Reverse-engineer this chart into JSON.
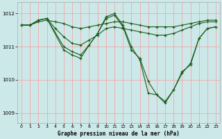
{
  "background_color": "#cce8e8",
  "grid_color": "#ff9999",
  "line_color": "#1a5c1a",
  "title": "Graphe pression niveau de la mer (hPa)",
  "xlim": [
    -0.5,
    23.5
  ],
  "ylim": [
    1008.7,
    1012.35
  ],
  "yticks": [
    1009,
    1010,
    1011,
    1012
  ],
  "xticks": [
    0,
    1,
    2,
    3,
    4,
    5,
    6,
    7,
    8,
    9,
    10,
    11,
    12,
    13,
    14,
    15,
    16,
    17,
    18,
    19,
    20,
    21,
    22,
    23
  ],
  "series": [
    {
      "x": [
        0,
        1,
        2,
        3,
        4,
        5,
        6,
        7,
        8,
        9,
        10,
        11,
        12,
        13,
        14,
        15,
        16,
        17,
        18,
        19,
        20,
        21,
        22,
        23
      ],
      "y": [
        1011.65,
        1011.65,
        1011.75,
        1011.8,
        1011.75,
        1011.7,
        1011.6,
        1011.55,
        1011.6,
        1011.65,
        1011.7,
        1011.75,
        1011.75,
        1011.7,
        1011.65,
        1011.6,
        1011.6,
        1011.6,
        1011.6,
        1011.65,
        1011.7,
        1011.75,
        1011.8,
        1011.8
      ]
    },
    {
      "x": [
        0,
        1,
        2,
        3,
        4,
        5,
        6,
        7,
        8,
        9,
        10,
        11,
        12,
        13,
        14,
        15,
        16,
        17,
        18,
        19,
        20,
        21,
        22,
        23
      ],
      "y": [
        1011.65,
        1011.65,
        1011.8,
        1011.85,
        1011.55,
        1011.3,
        1011.1,
        1011.05,
        1011.2,
        1011.35,
        1011.55,
        1011.6,
        1011.55,
        1011.5,
        1011.45,
        1011.4,
        1011.35,
        1011.35,
        1011.4,
        1011.5,
        1011.6,
        1011.7,
        1011.75,
        1011.75
      ]
    },
    {
      "x": [
        0,
        1,
        2,
        3,
        5,
        6,
        7,
        8,
        9,
        10,
        11,
        12,
        13,
        14,
        15,
        16,
        17,
        18,
        19,
        20,
        21,
        22,
        23
      ],
      "y": [
        1011.65,
        1011.65,
        1011.8,
        1011.85,
        1011.0,
        1010.85,
        1010.75,
        1011.05,
        1011.4,
        1011.85,
        1011.95,
        1011.6,
        1010.9,
        1010.65,
        1009.95,
        1009.55,
        1009.35,
        1009.7,
        1010.2,
        1010.5,
        1011.25,
        1011.55,
        1011.6
      ]
    },
    {
      "x": [
        0,
        1,
        2,
        3,
        5,
        6,
        7,
        8,
        9,
        10,
        11,
        12,
        13,
        14,
        15,
        16,
        17,
        18,
        19,
        20,
        21,
        22,
        23
      ],
      "y": [
        1011.65,
        1011.65,
        1011.8,
        1011.85,
        1010.9,
        1010.75,
        1010.65,
        1011.05,
        1011.4,
        1011.9,
        1012.0,
        1011.65,
        1011.0,
        1010.6,
        1009.6,
        1009.55,
        1009.3,
        1009.7,
        1010.25,
        1010.45,
        1011.25,
        1011.55,
        1011.6
      ]
    }
  ]
}
